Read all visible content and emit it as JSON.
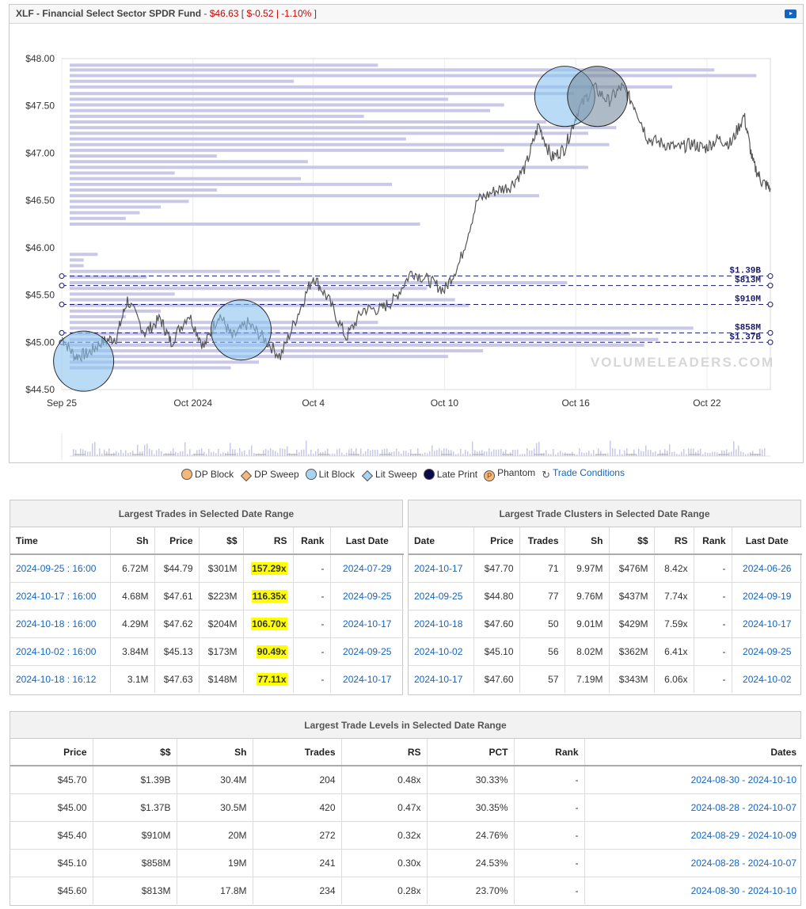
{
  "header": {
    "symbol": "XLF",
    "name_sep": " - ",
    "name": "Financial Select Sector SPDR Fund",
    "dash": " - ",
    "price": "$46.63",
    "open_br": " [ ",
    "change": "$-0.52 | -1.10%",
    "close_br": " ]",
    "video_icon": "youtube-play-icon"
  },
  "chart_data": {
    "type": "line",
    "x_ticks": [
      "Sep 25",
      "Oct 2024",
      "Oct 4",
      "Oct 10",
      "Oct 16",
      "Oct 22"
    ],
    "y_ticks": [
      "$44.50",
      "$45.00",
      "$45.50",
      "$46.00",
      "$46.50",
      "$47.00",
      "$47.50",
      "$48.00"
    ],
    "ylim": [
      44.5,
      48.0
    ],
    "x_days": [
      0,
      29
    ],
    "watermark": "VOLUMELEADERS.COM",
    "price_series": [
      [
        0.0,
        45.05
      ],
      [
        0.6,
        44.85
      ],
      [
        1.2,
        44.88
      ],
      [
        1.8,
        45.0
      ],
      [
        2.5,
        45.05
      ],
      [
        3.0,
        45.45
      ],
      [
        3.8,
        45.1
      ],
      [
        4.5,
        45.25
      ],
      [
        5.0,
        45.0
      ],
      [
        5.8,
        45.3
      ],
      [
        6.5,
        44.95
      ],
      [
        7.2,
        45.3
      ],
      [
        7.8,
        45.05
      ],
      [
        8.5,
        45.2
      ],
      [
        9.2,
        45.05
      ],
      [
        10.0,
        44.85
      ],
      [
        10.8,
        45.3
      ],
      [
        11.5,
        45.7
      ],
      [
        12.2,
        45.45
      ],
      [
        13.0,
        45.05
      ],
      [
        13.8,
        45.35
      ],
      [
        14.6,
        45.35
      ],
      [
        15.2,
        45.45
      ],
      [
        16.0,
        45.75
      ],
      [
        16.8,
        45.65
      ],
      [
        17.5,
        45.55
      ],
      [
        18.2,
        45.85
      ],
      [
        19.0,
        46.5
      ],
      [
        19.8,
        46.6
      ],
      [
        20.5,
        46.65
      ],
      [
        21.2,
        46.85
      ],
      [
        21.8,
        47.3
      ],
      [
        22.4,
        46.95
      ],
      [
        23.0,
        47.05
      ],
      [
        23.6,
        47.45
      ],
      [
        24.3,
        47.7
      ],
      [
        25.0,
        47.55
      ],
      [
        25.6,
        47.7
      ],
      [
        26.2,
        47.5
      ],
      [
        26.8,
        47.15
      ],
      [
        27.5,
        47.1
      ],
      [
        28.2,
        47.05
      ],
      [
        28.8,
        47.1
      ],
      [
        29.4,
        47.05
      ],
      [
        30.0,
        47.15
      ],
      [
        30.6,
        47.1
      ],
      [
        31.2,
        47.4
      ],
      [
        31.6,
        46.9
      ],
      [
        32.0,
        46.7
      ],
      [
        32.4,
        46.63
      ]
    ],
    "level_lines": [
      {
        "price": 45.7,
        "label": "$1.39B"
      },
      {
        "price": 45.6,
        "label": "$813M"
      },
      {
        "price": 45.4,
        "label": "$910M"
      },
      {
        "price": 45.1,
        "label": "$858M"
      },
      {
        "price": 45.0,
        "label": "$1.37B"
      }
    ],
    "trade_circles": [
      {
        "day": 1.0,
        "price": 44.8,
        "kind": "lit-block"
      },
      {
        "day": 8.2,
        "price": 45.13,
        "kind": "lit-block"
      },
      {
        "day": 23.0,
        "price": 47.6,
        "kind": "lit-block"
      },
      {
        "day": 24.5,
        "price": 47.6,
        "kind": "dark-cluster"
      }
    ]
  },
  "legend": [
    {
      "label": "DP Block",
      "shape": "circle",
      "color": "#f5b77a",
      "icon": "dp-block-icon"
    },
    {
      "label": "DP Sweep",
      "shape": "diamond",
      "color": "#f5b77a",
      "icon": "dp-sweep-icon"
    },
    {
      "label": "Lit Block",
      "shape": "circle",
      "color": "#a8d4f2",
      "icon": "lit-block-icon"
    },
    {
      "label": "Lit Sweep",
      "shape": "diamond",
      "color": "#a8d4f2",
      "icon": "lit-sweep-icon"
    },
    {
      "label": "Late Print",
      "shape": "circle",
      "color": "#0b0b4a",
      "icon": "late-print-icon"
    },
    {
      "label": "Phantom",
      "shape": "phantom",
      "color": "#f5b77a",
      "icon": "phantom-icon"
    },
    {
      "label": "Trade Conditions",
      "shape": "refresh",
      "color": "#555555",
      "icon": "trade-conditions-icon"
    }
  ],
  "trades": {
    "title": "Largest Trades in Selected Date Range",
    "headers": [
      "Time",
      "Sh",
      "Price",
      "$$",
      "RS",
      "Rank",
      "Last Date"
    ],
    "rows": [
      [
        "2024-09-25 : 16:00",
        "6.72M",
        "$44.79",
        "$301M",
        "157.29x",
        "-",
        "2024-07-29"
      ],
      [
        "2024-10-17 : 16:00",
        "4.68M",
        "$47.61",
        "$223M",
        "116.35x",
        "-",
        "2024-09-25"
      ],
      [
        "2024-10-18 : 16:00",
        "4.29M",
        "$47.62",
        "$204M",
        "106.70x",
        "-",
        "2024-10-17"
      ],
      [
        "2024-10-02 : 16:00",
        "3.84M",
        "$45.13",
        "$173M",
        "90.49x",
        "-",
        "2024-09-25"
      ],
      [
        "2024-10-18 : 16:12",
        "3.1M",
        "$47.63",
        "$148M",
        "77.11x",
        "-",
        "2024-10-17"
      ]
    ]
  },
  "clusters": {
    "title": "Largest Trade Clusters in Selected Date Range",
    "headers": [
      "Date",
      "Price",
      "Trades",
      "Sh",
      "$$",
      "RS",
      "Rank",
      "Last Date"
    ],
    "rows": [
      [
        "2024-10-17",
        "$47.70",
        "71",
        "9.97M",
        "$476M",
        "8.42x",
        "-",
        "2024-06-26"
      ],
      [
        "2024-09-25",
        "$44.80",
        "77",
        "9.76M",
        "$437M",
        "7.74x",
        "-",
        "2024-09-19"
      ],
      [
        "2024-10-18",
        "$47.60",
        "50",
        "9.01M",
        "$429M",
        "7.59x",
        "-",
        "2024-10-17"
      ],
      [
        "2024-10-02",
        "$45.10",
        "56",
        "8.02M",
        "$362M",
        "6.41x",
        "-",
        "2024-09-25"
      ],
      [
        "2024-10-17",
        "$47.60",
        "57",
        "7.19M",
        "$343M",
        "6.06x",
        "-",
        "2024-10-02"
      ]
    ]
  },
  "levels": {
    "title": "Largest Trade Levels in Selected Date Range",
    "headers": [
      "Price",
      "$$",
      "Sh",
      "Trades",
      "RS",
      "PCT",
      "Rank",
      "Dates"
    ],
    "rows": [
      [
        "$45.70",
        "$1.39B",
        "30.4M",
        "204",
        "0.48x",
        "30.33%",
        "-",
        "2024-08-30 - 2024-10-10"
      ],
      [
        "$45.00",
        "$1.37B",
        "30.5M",
        "420",
        "0.47x",
        "30.35%",
        "-",
        "2024-08-28 - 2024-10-07"
      ],
      [
        "$45.40",
        "$910M",
        "20M",
        "272",
        "0.32x",
        "24.76%",
        "-",
        "2024-08-29 - 2024-10-09"
      ],
      [
        "$45.10",
        "$858M",
        "19M",
        "241",
        "0.30x",
        "24.53%",
        "-",
        "2024-08-28 - 2024-10-07"
      ],
      [
        "$45.60",
        "$813M",
        "17.8M",
        "234",
        "0.28x",
        "23.70%",
        "-",
        "2024-08-30 - 2024-10-10"
      ]
    ]
  }
}
